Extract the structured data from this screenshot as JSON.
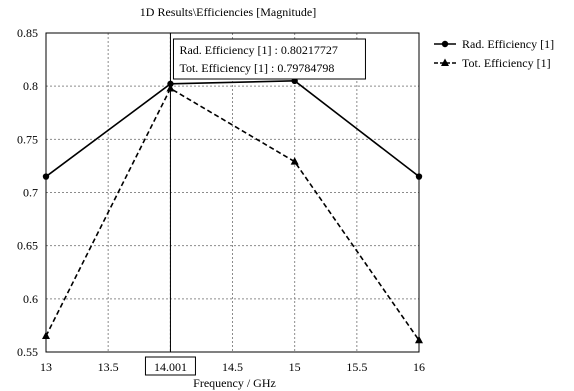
{
  "chart_data": {
    "type": "line",
    "title": "1D Results\\Efficiencies [Magnitude]",
    "xlabel": "Frequency / GHz",
    "ylabel": "",
    "xlim": [
      13,
      16
    ],
    "ylim": [
      0.55,
      0.85
    ],
    "x_ticks": [
      "13",
      "13.5",
      "14",
      "14.5",
      "15",
      "15.5",
      "16"
    ],
    "y_ticks": [
      "0.85",
      "0.8",
      "0.75",
      "0.7",
      "0.65",
      "0.6",
      "0.55"
    ],
    "grid": true,
    "legend_position": "top-right",
    "series": [
      {
        "name": "Rad. Efficiency [1]",
        "line_style": "solid",
        "marker": "circle",
        "color": "#000000",
        "x": [
          13,
          14.001,
          15,
          16
        ],
        "y": [
          0.715,
          0.80217727,
          0.805,
          0.715
        ]
      },
      {
        "name": "Tot. Efficiency [1]",
        "line_style": "dashed",
        "marker": "triangle",
        "color": "#000000",
        "x": [
          13,
          14.001,
          15,
          16
        ],
        "y": [
          0.565,
          0.79784798,
          0.729,
          0.561
        ]
      }
    ],
    "cursor": {
      "x_label": "14.001",
      "x": 14.001,
      "lines": [
        "Rad. Efficiency [1] : 0.80217727",
        "Tot. Efficiency [1] : 0.79784798"
      ]
    }
  }
}
